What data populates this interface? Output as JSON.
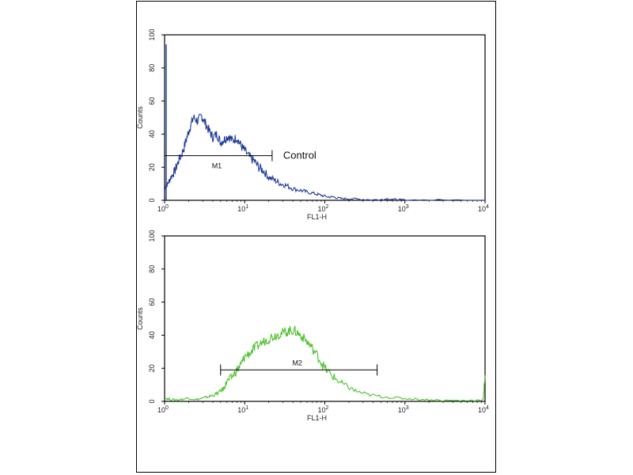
{
  "chart_data": [
    {
      "type": "line",
      "panel": "top",
      "xlabel": "FL1-H",
      "ylabel": "Counts",
      "xscale": "log",
      "xlim": [
        1,
        10000
      ],
      "ylim": [
        0,
        100
      ],
      "yticks": [
        0,
        20,
        40,
        60,
        80,
        100
      ],
      "xtick_labels": [
        {
          "base": "10",
          "exp": "0"
        },
        {
          "base": "10",
          "exp": "1"
        },
        {
          "base": "10",
          "exp": "2"
        },
        {
          "base": "10",
          "exp": "3"
        },
        {
          "base": "10",
          "exp": "4"
        }
      ],
      "color": "#1f3b9a",
      "series": [
        {
          "x": [
            1.0,
            1.1,
            1.2,
            1.35,
            1.5,
            1.7,
            1.9,
            2.1,
            2.3,
            2.6,
            2.9,
            3.2,
            3.6,
            4.0,
            4.5,
            5.0,
            5.6,
            6.3,
            7.0,
            8.0,
            9.0,
            10.0,
            11.5,
            13,
            15,
            17,
            20,
            24,
            28,
            33,
            40,
            50,
            60,
            75,
            90,
            110,
            130,
            160,
            200,
            300,
            500,
            600,
            800,
            1000,
            3000,
            10000
          ],
          "y": [
            8,
            10,
            14,
            18,
            24,
            30,
            38,
            45,
            50,
            48,
            51,
            47,
            42,
            38,
            40,
            35,
            37,
            39,
            36,
            38,
            33,
            30,
            26,
            24,
            20,
            18,
            14,
            12,
            10,
            9,
            7,
            6,
            5,
            4,
            3,
            2,
            2,
            1,
            1,
            0.5,
            0.3,
            1,
            0.3,
            0.2,
            0.1,
            0
          ]
        }
      ],
      "marker": {
        "label": "M1",
        "x_start": 1.0,
        "x_end": 22,
        "y": 27
      },
      "annotation": "Control"
    },
    {
      "type": "line",
      "panel": "bottom",
      "xlabel": "FL1-H",
      "ylabel": "Counts",
      "xscale": "log",
      "xlim": [
        1,
        10000
      ],
      "ylim": [
        0,
        100
      ],
      "yticks": [
        0,
        20,
        40,
        60,
        80,
        100
      ],
      "xtick_labels": [
        {
          "base": "10",
          "exp": "0"
        },
        {
          "base": "10",
          "exp": "1"
        },
        {
          "base": "10",
          "exp": "2"
        },
        {
          "base": "10",
          "exp": "3"
        },
        {
          "base": "10",
          "exp": "4"
        }
      ],
      "color": "#4cc12a",
      "series": [
        {
          "x": [
            1.0,
            1.2,
            1.5,
            2.0,
            2.5,
            3.0,
            3.6,
            4.2,
            5.0,
            5.5,
            6.0,
            7.0,
            8.0,
            9.0,
            10,
            12,
            14,
            17,
            20,
            24,
            28,
            33,
            38,
            44,
            50,
            60,
            70,
            85,
            100,
            120,
            150,
            190,
            250,
            350,
            500,
            800,
            1200,
            2000,
            3500,
            6000,
            9500,
            10000
          ],
          "y": [
            2,
            1,
            1,
            2,
            1,
            2,
            3,
            4,
            6,
            8,
            12,
            15,
            19,
            22,
            27,
            30,
            33,
            36,
            38,
            40,
            41,
            42,
            43,
            42,
            40,
            36,
            32,
            26,
            20,
            16,
            12,
            9,
            6,
            4,
            3,
            2,
            1.5,
            1,
            0.5,
            0.5,
            1,
            16
          ]
        }
      ],
      "marker": {
        "label": "M2",
        "x_start": 5.0,
        "x_end": 450,
        "y": 19
      }
    }
  ]
}
